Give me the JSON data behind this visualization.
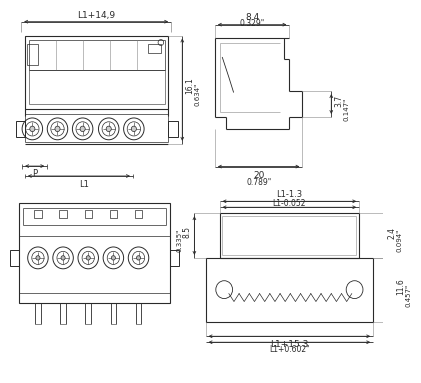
{
  "bg_color": "#ffffff",
  "lc": "#2a2a2a",
  "gc": "#888888",
  "dim_c": "#2a2a2a",
  "top_left_dim": "L1+14,9",
  "top_left_h": "16.1",
  "top_left_h_in": "0.634\"",
  "top_left_P": "P",
  "top_left_L1": "L1",
  "tr_w": "8.4",
  "tr_w_in": "0.329\"",
  "tr_h2": "3.7",
  "tr_h2_in": "0.147\"",
  "tr_bot": "20",
  "tr_bot_in": "0.789\"",
  "br_top1": "L1-1.3",
  "br_top2": "L1-0.052",
  "br_lh": "8.5",
  "br_lh_in": "0.335\"",
  "br_rw": "2.4",
  "br_rw_in": "0.094\"",
  "br_bw1": "L1+15.3",
  "br_bw2": "L1+0.602\"",
  "br_rh": "11.6",
  "br_rh_in": "0.457\""
}
